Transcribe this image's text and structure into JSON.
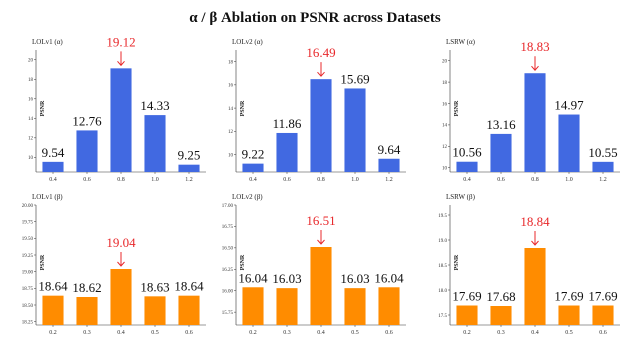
{
  "figure": {
    "title": "α / β Ablation on PSNR across Datasets"
  },
  "colors": {
    "alpha": "#4169e1",
    "beta": "#ff8c00",
    "highlight": "#e8282b"
  },
  "chart_data": [
    {
      "type": "bar",
      "title": "LOLv1 (α)",
      "ylabel": "PSNR",
      "categories": [
        "0.4",
        "0.6",
        "0.8",
        "1.0",
        "1.2"
      ],
      "values": [
        9.54,
        12.76,
        19.12,
        14.33,
        9.25
      ],
      "value_labels": [
        "9.54",
        "12.76",
        "19.12",
        "14.33",
        "9.25"
      ],
      "ylim": [
        8.5,
        21
      ],
      "yticks": [
        "10",
        "12",
        "14",
        "16",
        "18",
        "20"
      ],
      "highlight_index": 2,
      "color": "#4169e1"
    },
    {
      "type": "bar",
      "title": "LOLv2 (α)",
      "ylabel": "PSNR",
      "categories": [
        "0.4",
        "0.6",
        "0.8",
        "1.0",
        "1.2"
      ],
      "values": [
        9.22,
        11.86,
        16.49,
        15.69,
        9.64
      ],
      "value_labels": [
        "9.22",
        "11.86",
        "16.49",
        "15.69",
        "9.64"
      ],
      "ylim": [
        8.5,
        19
      ],
      "yticks": [
        "10",
        "12",
        "14",
        "16",
        "18"
      ],
      "highlight_index": 2,
      "color": "#4169e1"
    },
    {
      "type": "bar",
      "title": "LSRW (α)",
      "ylabel": "PSNR",
      "categories": [
        "0.4",
        "0.6",
        "0.8",
        "1.0",
        "1.2"
      ],
      "values": [
        10.56,
        13.16,
        18.83,
        14.97,
        10.55
      ],
      "value_labels": [
        "10.56",
        "13.16",
        "18.83",
        "14.97",
        "10.55"
      ],
      "ylim": [
        9.6,
        21
      ],
      "yticks": [
        "10",
        "12",
        "14",
        "16",
        "18",
        "20"
      ],
      "highlight_index": 2,
      "color": "#4169e1"
    },
    {
      "type": "bar",
      "title": "LOLv1 (β)",
      "ylabel": "PSNR",
      "categories": [
        "0.2",
        "0.3",
        "0.4",
        "0.5",
        "0.6"
      ],
      "values": [
        18.64,
        18.62,
        19.04,
        18.63,
        18.64
      ],
      "value_labels": [
        "18.64",
        "18.62",
        "19.04",
        "18.63",
        "18.64"
      ],
      "ylim": [
        18.2,
        20.0
      ],
      "yticks": [
        "18.25",
        "18.50",
        "18.75",
        "19.00",
        "19.25",
        "19.50",
        "19.75",
        "20.00"
      ],
      "highlight_index": 2,
      "color": "#ff8c00"
    },
    {
      "type": "bar",
      "title": "LOLv2 (β)",
      "ylabel": "PSNR",
      "categories": [
        "0.2",
        "0.3",
        "0.4",
        "0.5",
        "0.6"
      ],
      "values": [
        16.04,
        16.03,
        16.51,
        16.03,
        16.04
      ],
      "value_labels": [
        "16.04",
        "16.03",
        "16.51",
        "16.03",
        "16.04"
      ],
      "ylim": [
        15.6,
        17.0
      ],
      "yticks": [
        "15.75",
        "16.00",
        "16.25",
        "16.50",
        "16.75",
        "17.00"
      ],
      "highlight_index": 2,
      "color": "#ff8c00"
    },
    {
      "type": "bar",
      "title": "LSRW (β)",
      "ylabel": "PSNR",
      "categories": [
        "0.2",
        "0.3",
        "0.4",
        "0.5",
        "0.6"
      ],
      "values": [
        17.69,
        17.68,
        18.84,
        17.69,
        17.69
      ],
      "value_labels": [
        "17.69",
        "17.68",
        "18.84",
        "17.69",
        "17.69"
      ],
      "ylim": [
        17.3,
        19.7
      ],
      "yticks": [
        "17.5",
        "18.0",
        "18.5",
        "19.0",
        "19.5"
      ],
      "highlight_index": 2,
      "color": "#ff8c00"
    }
  ]
}
